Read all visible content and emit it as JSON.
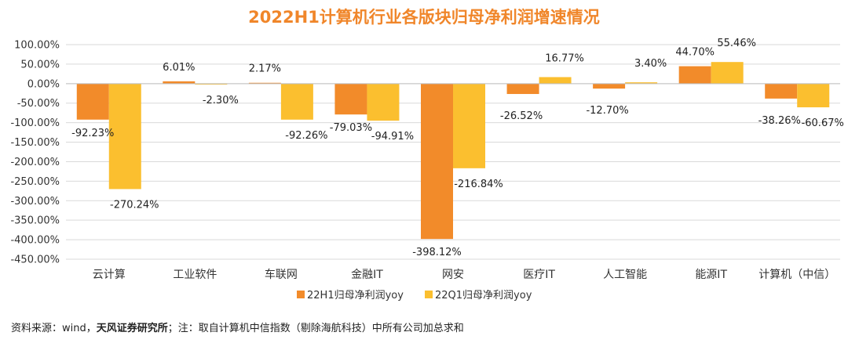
{
  "chart_data": {
    "type": "bar",
    "title": "2022H1计算机行业各版块归母净利润增速情况",
    "categories": [
      "云计算",
      "工业软件",
      "车联网",
      "金融IT",
      "网安",
      "医疗IT",
      "人工智能",
      "能源IT",
      "计算机（中信）"
    ],
    "series": [
      {
        "name": "22H1归母净利润yoy",
        "values": [
          -92.23,
          6.01,
          2.17,
          -79.03,
          -398.12,
          -26.52,
          -12.7,
          44.7,
          -38.26
        ],
        "labels": [
          "-92.23%",
          "6.01%",
          "2.17%",
          "-79.03%",
          "-398.12%",
          "-26.52%",
          "-12.70%",
          "44.70%",
          "-38.26%"
        ]
      },
      {
        "name": "22Q1归母净利润yoy",
        "values": [
          -270.24,
          -2.3,
          -92.26,
          -94.91,
          -216.84,
          16.77,
          3.4,
          55.46,
          -60.67
        ],
        "labels": [
          "-270.24%",
          "-2.30%",
          "-92.26%",
          "-94.91%",
          "-216.84%",
          "16.77%",
          "3.40%",
          "55.46%",
          "-60.67%"
        ]
      }
    ],
    "yticks": [
      "100.00%",
      "50.00%",
      "0.00%",
      "-50.00%",
      "-100.00%",
      "-150.00%",
      "-200.00%",
      "-250.00%",
      "-300.00%",
      "-350.00%",
      "-400.00%",
      "-450.00%"
    ],
    "ylim": [
      -450,
      100
    ],
    "colors": [
      "#f28b2a",
      "#fbbf2f"
    ],
    "legend_position": "bottom",
    "grid": true
  },
  "footer": {
    "prefix": "资料来源：wind，",
    "bold_part": "天风证券研究所",
    "suffix": "；注：取自计算机中信指数（剔除海航科技）中所有公司加总求和"
  }
}
